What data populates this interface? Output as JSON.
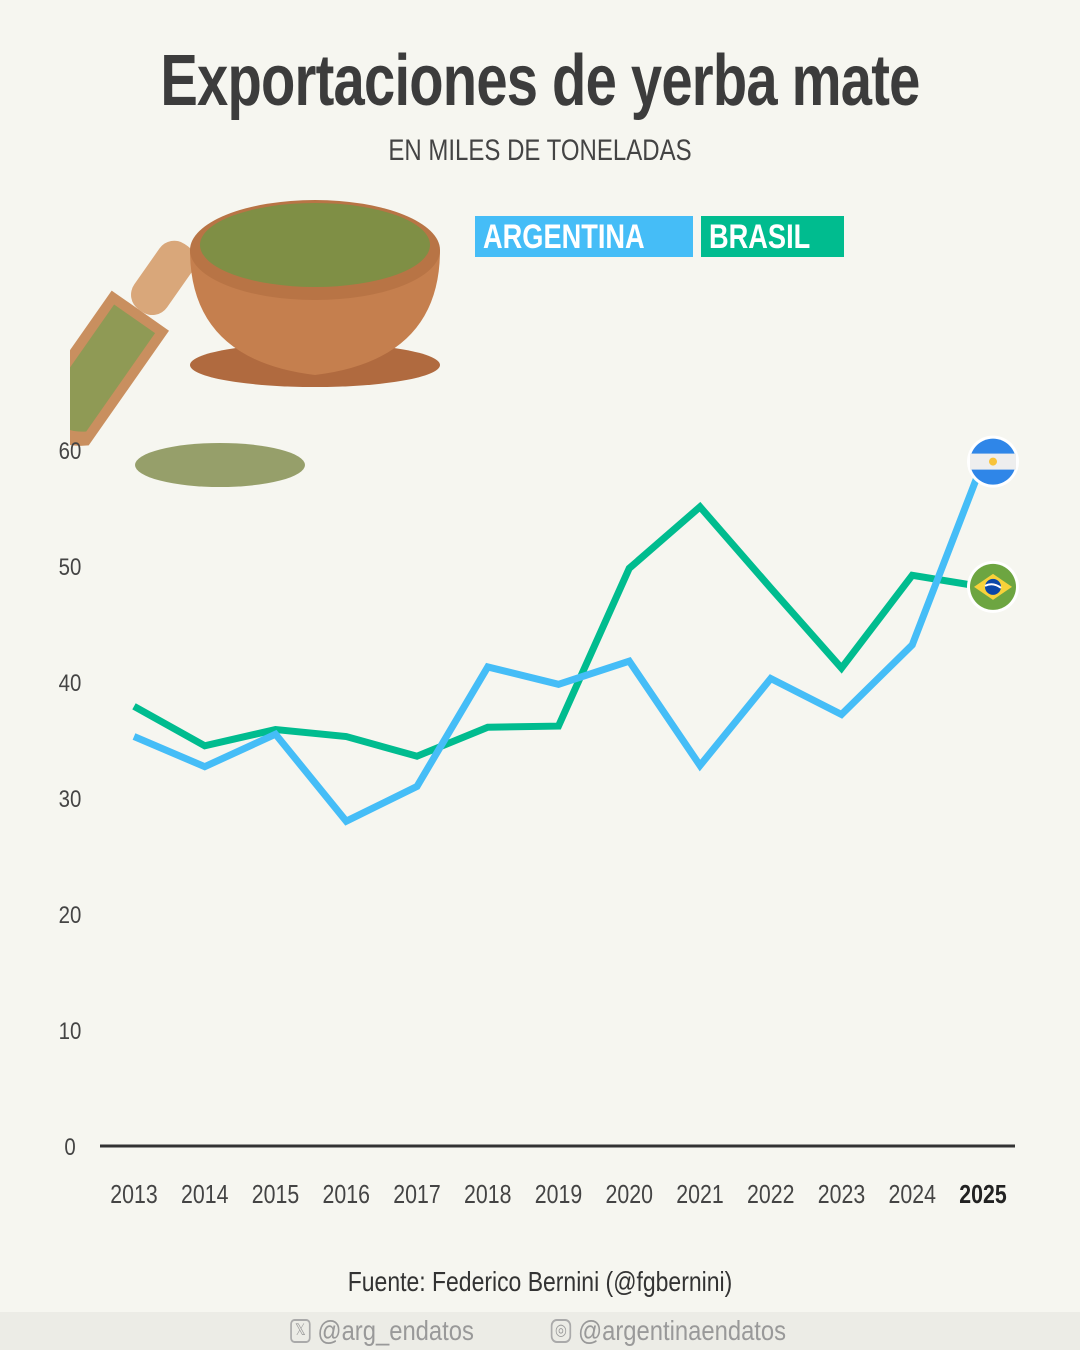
{
  "chart_data": {
    "type": "line",
    "title": "Exportaciones de yerba mate",
    "subtitle": "EN MILES DE TONELADAS",
    "x": [
      "2013",
      "2014",
      "2015",
      "2016",
      "2017",
      "2018",
      "2019",
      "2020",
      "2021",
      "2022",
      "2023",
      "2024",
      "2025"
    ],
    "highlight_x": "2025",
    "yticks": [
      0,
      10,
      20,
      30,
      40,
      50,
      60
    ],
    "ylim": [
      0,
      60
    ],
    "grid": false,
    "legend_placement": "top",
    "series": [
      {
        "name": "ARGENTINA",
        "color": "#45bdf7",
        "icon": "argentina-flag-icon",
        "values": [
          35.3,
          32.7,
          35.5,
          28.0,
          31.0,
          41.3,
          39.8,
          41.8,
          32.8,
          40.3,
          37.2,
          43.2,
          59.0
        ]
      },
      {
        "name": "BRASIL",
        "color": "#00bc8f",
        "icon": "brazil-flag-icon",
        "values": [
          37.9,
          34.5,
          35.9,
          35.3,
          33.6,
          36.1,
          36.2,
          49.8,
          55.1,
          48.1,
          41.2,
          49.2,
          48.2
        ]
      }
    ]
  },
  "source": "Fuente: Federico Bernini (@fgbernini)",
  "footer": {
    "twitter": "@arg_endatos",
    "twitter_icon": "x-icon",
    "instagram": "@argentinaendatos",
    "instagram_icon": "instagram-icon"
  }
}
